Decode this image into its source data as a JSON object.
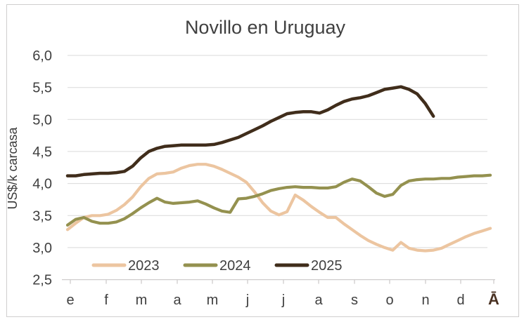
{
  "chart_title": "Novillo en Uruguay",
  "y_axis": {
    "title": "US$/k carcasa",
    "tick_labels": [
      "6,0",
      "5,5",
      "5,0",
      "4,5",
      "4,0",
      "3,5",
      "3,0",
      "2,5"
    ]
  },
  "x_axis": {
    "month_labels": [
      "e",
      "f",
      "m",
      "a",
      "m",
      "j",
      "j",
      "a",
      "s",
      "o",
      "n",
      "d"
    ],
    "average_label": "Ā"
  },
  "legend": {
    "items": [
      "2023",
      "2024",
      "2025"
    ]
  },
  "colors": {
    "series_2023": "#ecc5a0",
    "series_2024": "#94914f",
    "series_2025": "#402d1b",
    "gridline": "#d9d9d9",
    "axis_line": "#cfcdcd",
    "axis_text": "#404040",
    "average_label_text": "#4a3223",
    "border": "#d0cece"
  },
  "chart_data": {
    "type": "line",
    "title": "Novillo en Uruguay",
    "xlabel": "",
    "ylabel": "US$/k carcasa",
    "ylim": [
      2.5,
      6.0
    ],
    "ytick_step": 0.5,
    "grid": true,
    "legend_position": "bottom-inside",
    "x_months": [
      "e",
      "f",
      "m",
      "a",
      "m",
      "j",
      "j",
      "a",
      "s",
      "o",
      "n",
      "d"
    ],
    "x_average_label": "Ā",
    "x_unit": "week",
    "series": [
      {
        "name": "2023",
        "color": "#ecc5a0",
        "values": [
          3.28,
          3.38,
          3.47,
          3.5,
          3.5,
          3.52,
          3.58,
          3.67,
          3.79,
          3.95,
          4.08,
          4.15,
          4.16,
          4.18,
          4.24,
          4.28,
          4.3,
          4.3,
          4.27,
          4.22,
          4.16,
          4.1,
          4.02,
          3.87,
          3.7,
          3.57,
          3.51,
          3.56,
          3.82,
          3.74,
          3.64,
          3.55,
          3.47,
          3.47,
          3.37,
          3.28,
          3.19,
          3.11,
          3.05,
          3.0,
          2.96,
          3.08,
          2.99,
          2.96,
          2.95,
          2.96,
          2.99,
          3.05,
          3.11,
          3.17,
          3.22,
          3.26,
          3.3
        ]
      },
      {
        "name": "2024",
        "color": "#94914f",
        "values": [
          3.35,
          3.44,
          3.47,
          3.41,
          3.38,
          3.38,
          3.4,
          3.45,
          3.53,
          3.62,
          3.7,
          3.77,
          3.71,
          3.69,
          3.7,
          3.71,
          3.73,
          3.68,
          3.62,
          3.57,
          3.55,
          3.76,
          3.77,
          3.8,
          3.84,
          3.89,
          3.92,
          3.94,
          3.95,
          3.94,
          3.94,
          3.93,
          3.93,
          3.95,
          4.02,
          4.07,
          4.04,
          3.95,
          3.85,
          3.8,
          3.83,
          3.97,
          4.04,
          4.06,
          4.07,
          4.07,
          4.08,
          4.08,
          4.1,
          4.11,
          4.12,
          4.12,
          4.13
        ]
      },
      {
        "name": "2025",
        "color": "#402d1b",
        "values": [
          4.12,
          4.12,
          4.14,
          4.15,
          4.16,
          4.16,
          4.17,
          4.19,
          4.27,
          4.4,
          4.5,
          4.55,
          4.58,
          4.59,
          4.6,
          4.6,
          4.6,
          4.6,
          4.61,
          4.64,
          4.68,
          4.72,
          4.78,
          4.84,
          4.9,
          4.97,
          5.03,
          5.09,
          5.11,
          5.12,
          5.12,
          5.1,
          5.15,
          5.22,
          5.28,
          5.32,
          5.34,
          5.37,
          5.42,
          5.47,
          5.49,
          5.51,
          5.47,
          5.4,
          5.25,
          5.05
        ]
      }
    ]
  }
}
